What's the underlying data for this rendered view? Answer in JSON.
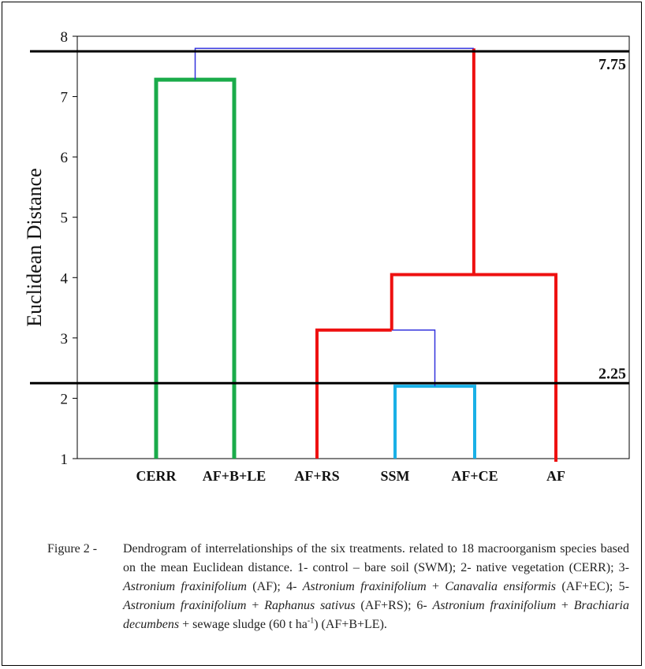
{
  "chart_data": {
    "type": "dendrogram",
    "ylabel": "Euclidean Distance",
    "ylim": [
      1,
      8
    ],
    "yticks": [
      "1",
      "2",
      "3",
      "4",
      "5",
      "6",
      "7",
      "8"
    ],
    "leaves": [
      "CERR",
      "AF+B+LE",
      "AF+RS",
      "SSM",
      "AF+CE",
      "AF"
    ],
    "merges": [
      {
        "left": "SSM",
        "right": "AF+CE",
        "height": 2.2,
        "color": "#1ab0e6"
      },
      {
        "left": "AF+RS",
        "right": "SSM+AF+CE",
        "height": 3.13,
        "color": "#3333dd"
      },
      {
        "left": "AF+RS+SSM+AF+CE",
        "right": "AF",
        "height": 4.05,
        "color": "#ee1111"
      },
      {
        "left": "CERR",
        "right": "AF+B+LE",
        "height": 7.28,
        "color": "#1aab4a"
      },
      {
        "left": "CERR+AF+B+LE",
        "right": "rest",
        "height": 7.8,
        "color": "#3333dd"
      }
    ],
    "cut_lines": [
      {
        "value": 7.75,
        "label": "7.75"
      },
      {
        "value": 2.25,
        "label": "2.25"
      }
    ],
    "colors": {
      "green": "#1aab4a",
      "red": "#ee1111",
      "cyan": "#1ab0e6",
      "blue": "#3333dd",
      "black": "#000000"
    }
  },
  "caption": {
    "prefix": "Figure 2 -",
    "p1": " Dendrogram of interrelationships of the six treatments. related to 18 macroorganism species based on the mean Euclidean distance. 1- control – bare soil (SWM); 2- native vegetation (CERR); 3- ",
    "i1": "Astronium fraxinifolium",
    "p2": " (AF); 4- ",
    "i2": "Astronium fraxinifolium",
    "p3": " + ",
    "i3": "Canavalia ensiformis",
    "p4": " (AF+EC); 5- ",
    "i4": "Astronium fraxinifolium",
    "p5": " + ",
    "i5": "Raphanus sativus",
    "p6": " (AF+RS); 6- ",
    "i6": "Astronium fraxinifolium",
    "p7": " + ",
    "i7": "Brachiaria decumbens",
    "p8": " + sewage sludge (60 t ha",
    "sup": "-1",
    "p9": ") (AF+B+LE)."
  }
}
